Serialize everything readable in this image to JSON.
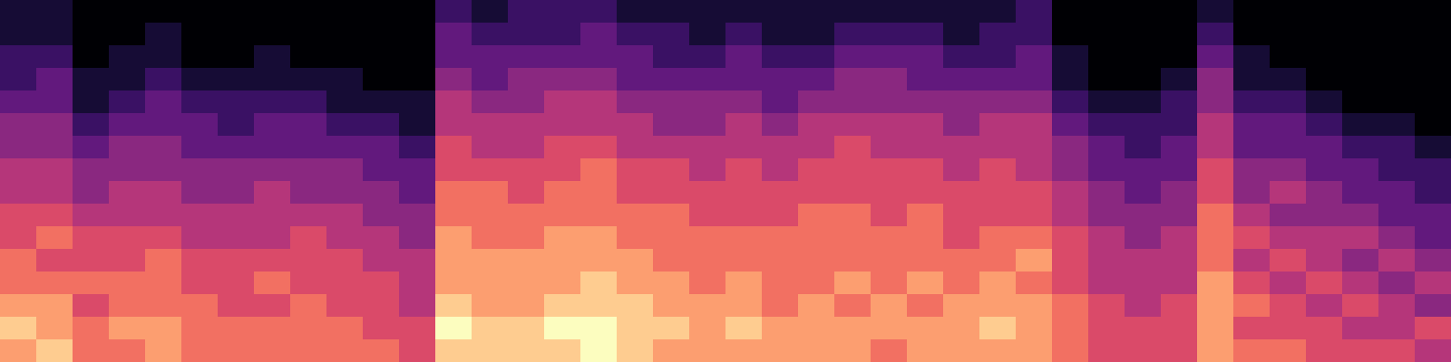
{
  "chart_data": {
    "type": "heatmap",
    "zlim": [
      0,
      10
    ],
    "tick_labels": false,
    "cells": [
      [
        8,
        9,
        8,
        7,
        7,
        6,
        6,
        5,
        5,
        4,
        4,
        3,
        2,
        2,
        1,
        1
      ],
      [
        9,
        8,
        8,
        7,
        6,
        7,
        6,
        5,
        5,
        4,
        4,
        3,
        3,
        2,
        1,
        1
      ],
      [
        7,
        7,
        6,
        7,
        6,
        6,
        5,
        4,
        4,
        3,
        2,
        1,
        1,
        0,
        0,
        0
      ],
      [
        7,
        8,
        7,
        7,
        6,
        6,
        5,
        5,
        4,
        4,
        3,
        2,
        1,
        1,
        0,
        0
      ],
      [
        8,
        8,
        7,
        7,
        7,
        6,
        5,
        5,
        4,
        4,
        3,
        3,
        2,
        1,
        1,
        0
      ],
      [
        7,
        7,
        7,
        6,
        6,
        5,
        5,
        4,
        4,
        3,
        3,
        2,
        1,
        0,
        0,
        0
      ],
      [
        7,
        7,
        6,
        6,
        6,
        5,
        5,
        4,
        4,
        3,
        2,
        2,
        1,
        0,
        0,
        0
      ],
      [
        7,
        7,
        6,
        7,
        6,
        5,
        5,
        5,
        4,
        3,
        3,
        2,
        1,
        1,
        0,
        0
      ],
      [
        7,
        7,
        7,
        6,
        6,
        6,
        5,
        4,
        4,
        3,
        3,
        2,
        1,
        0,
        0,
        0
      ],
      [
        7,
        7,
        6,
        6,
        6,
        5,
        5,
        4,
        4,
        3,
        2,
        1,
        1,
        0,
        0,
        0
      ],
      [
        7,
        6,
        6,
        6,
        5,
        5,
        4,
        4,
        3,
        3,
        2,
        1,
        0,
        0,
        0,
        0
      ],
      [
        6,
        6,
        5,
        5,
        5,
        4,
        4,
        3,
        3,
        2,
        1,
        1,
        0,
        0,
        0,
        0
      ],
      [
        9,
        10,
        9,
        8,
        8,
        8,
        7,
        7,
        6,
        6,
        5,
        5,
        4,
        3,
        3,
        2
      ],
      [
        9,
        9,
        8,
        8,
        8,
        7,
        7,
        7,
        6,
        5,
        5,
        4,
        3,
        3,
        2,
        1
      ],
      [
        9,
        9,
        8,
        8,
        8,
        7,
        7,
        6,
        6,
        5,
        5,
        4,
        4,
        3,
        2,
        2
      ],
      [
        9,
        10,
        9,
        8,
        8,
        8,
        7,
        7,
        6,
        6,
        5,
        5,
        4,
        3,
        2,
        2
      ],
      [
        10,
        10,
        9,
        9,
        8,
        8,
        7,
        7,
        7,
        6,
        5,
        5,
        4,
        3,
        3,
        2
      ],
      [
        9,
        9,
        9,
        8,
        8,
        7,
        7,
        6,
        6,
        5,
        5,
        4,
        3,
        3,
        2,
        1
      ],
      [
        8,
        9,
        8,
        8,
        7,
        7,
        7,
        6,
        6,
        5,
        4,
        4,
        3,
        2,
        2,
        1
      ],
      [
        8,
        8,
        8,
        7,
        7,
        7,
        6,
        6,
        5,
        5,
        4,
        4,
        3,
        2,
        1,
        1
      ],
      [
        8,
        9,
        8,
        8,
        7,
        7,
        6,
        6,
        6,
        5,
        5,
        4,
        3,
        3,
        2,
        1
      ],
      [
        8,
        8,
        7,
        7,
        7,
        7,
        6,
        6,
        5,
        5,
        4,
        3,
        3,
        2,
        1,
        1
      ],
      [
        8,
        8,
        8,
        7,
        7,
        7,
        7,
        6,
        6,
        5,
        5,
        4,
        3,
        2,
        1,
        1
      ],
      [
        8,
        8,
        7,
        8,
        7,
        7,
        7,
        6,
        6,
        6,
        5,
        4,
        4,
        3,
        2,
        1
      ],
      [
        7,
        8,
        8,
        7,
        7,
        7,
        6,
        6,
        6,
        5,
        5,
        4,
        4,
        3,
        2,
        1
      ],
      [
        8,
        8,
        7,
        8,
        7,
        7,
        7,
        6,
        6,
        5,
        5,
        4,
        3,
        3,
        2,
        1
      ],
      [
        8,
        8,
        8,
        7,
        7,
        6,
        6,
        6,
        5,
        5,
        4,
        4,
        3,
        2,
        1,
        1
      ],
      [
        8,
        9,
        8,
        8,
        7,
        7,
        6,
        6,
        6,
        5,
        5,
        4,
        3,
        2,
        2,
        1
      ],
      [
        8,
        8,
        8,
        7,
        8,
        7,
        6,
        6,
        5,
        5,
        5,
        4,
        3,
        3,
        2,
        2
      ],
      [
        7,
        7,
        7,
        6,
        6,
        6,
        5,
        5,
        4,
        4,
        3,
        2,
        1,
        1,
        0,
        0
      ],
      [
        6,
        6,
        6,
        5,
        5,
        5,
        4,
        4,
        3,
        3,
        2,
        1,
        0,
        0,
        0,
        0
      ],
      [
        6,
        6,
        5,
        5,
        5,
        4,
        4,
        3,
        3,
        2,
        2,
        1,
        0,
        0,
        0,
        0
      ],
      [
        6,
        6,
        6,
        5,
        5,
        5,
        4,
        4,
        3,
        3,
        2,
        2,
        1,
        0,
        0,
        0
      ],
      [
        8,
        8,
        8,
        8,
        7,
        7,
        7,
        6,
        6,
        5,
        5,
        4,
        4,
        3,
        2,
        1
      ],
      [
        7,
        6,
        7,
        6,
        5,
        6,
        5,
        4,
        4,
        3,
        3,
        2,
        1,
        1,
        0,
        0
      ],
      [
        7,
        6,
        6,
        5,
        6,
        5,
        4,
        5,
        4,
        3,
        3,
        2,
        1,
        0,
        0,
        0
      ],
      [
        6,
        6,
        5,
        6,
        5,
        5,
        4,
        4,
        3,
        3,
        2,
        1,
        0,
        0,
        0,
        0
      ],
      [
        6,
        5,
        6,
        5,
        4,
        5,
        4,
        3,
        3,
        2,
        1,
        0,
        0,
        0,
        0,
        0
      ],
      [
        6,
        5,
        5,
        4,
        5,
        4,
        3,
        3,
        2,
        2,
        1,
        0,
        0,
        0,
        0,
        0
      ],
      [
        5,
        6,
        4,
        5,
        4,
        3,
        3,
        2,
        2,
        1,
        0,
        0,
        0,
        0,
        0,
        0
      ]
    ]
  }
}
